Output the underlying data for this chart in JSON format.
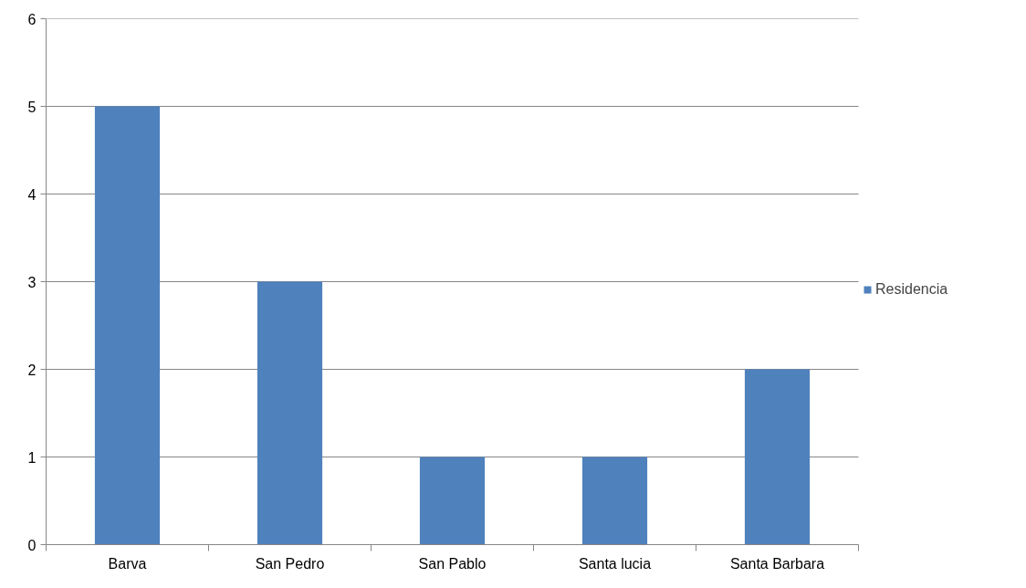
{
  "chart_data": {
    "type": "bar",
    "categories": [
      "Barva",
      "San Pedro",
      "San Pablo",
      "Santa lucia",
      "Santa Barbara"
    ],
    "series": [
      {
        "name": "Residencia",
        "color": "#4f81bd",
        "values": [
          5,
          3,
          1,
          1,
          2
        ]
      }
    ],
    "ylim": [
      0,
      6
    ],
    "yticks": [
      0,
      1,
      2,
      3,
      4,
      5,
      6
    ],
    "grid": "y",
    "legend": "right"
  }
}
